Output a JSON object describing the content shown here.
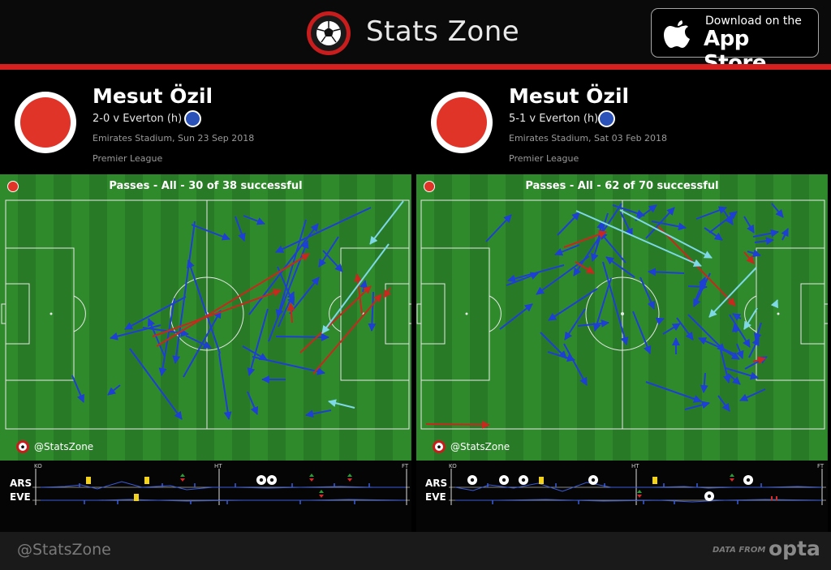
{
  "app": {
    "brand": "Stats Zone",
    "appstore_line1": "Download on the",
    "appstore_line2": "App Store",
    "colors": {
      "brand_red": "#d61f1f",
      "team_red": "#e03429",
      "opponent_blue": "#2a52b8",
      "pass_blue": "#1e3fd4",
      "pass_red": "#c8281e",
      "pass_cyan": "#7fd8e8"
    }
  },
  "panels": [
    {
      "player": "Mesut Özil",
      "score": "2-0 v Everton (h)",
      "venue": "Emirates Stadium, Sun 23 Sep 2018",
      "competition": "Premier League",
      "pitch_title": "Passes - All - 30 of 38 successful",
      "handle": "@StatsZone",
      "timeline": {
        "ko": "KO",
        "ht": "HT",
        "ft": "FT",
        "home": "ARS",
        "away": "EVE"
      }
    },
    {
      "player": "Mesut Özil",
      "score": "5-1 v Everton (h)",
      "venue": "Emirates Stadium, Sat 03 Feb 2018",
      "competition": "Premier League",
      "pitch_title": "Passes - All - 62 of 70 successful",
      "handle": "@StatsZone",
      "timeline": {
        "ko": "KO",
        "ht": "HT",
        "ft": "FT",
        "home": "ARS",
        "away": "EVE"
      }
    }
  ],
  "footer": {
    "handle": "@StatsZone",
    "data_from": "DATA FROM",
    "provider": "opta"
  },
  "icons": [
    "stats-zone-logo-icon",
    "apple-icon",
    "football-icon",
    "yellow-card-icon",
    "substitution-icon"
  ]
}
